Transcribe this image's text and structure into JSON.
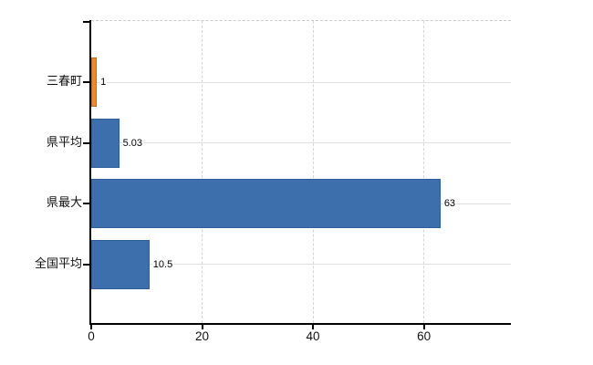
{
  "chart_data": {
    "type": "bar",
    "orientation": "horizontal",
    "title": "",
    "categories": [
      "三春町",
      "県平均",
      "県最大",
      "全国平均"
    ],
    "values": [
      1,
      5.03,
      63,
      10.5
    ],
    "value_labels": [
      "1",
      "5.03",
      "63",
      "10.5"
    ],
    "bar_styles": [
      {
        "fill": "#EC8A33",
        "border": "#C06A1E"
      },
      {
        "fill": "#3D6FAD",
        "border": "#2F5E99"
      },
      {
        "fill": "#3D6FAD",
        "border": "#2F5E99"
      },
      {
        "fill": "#3D6FAD",
        "border": "#2F5E99"
      }
    ],
    "x_ticks": [
      "0",
      "20",
      "40",
      "60"
    ],
    "x_tick_values": [
      0,
      20,
      40,
      60
    ],
    "xlim": [
      0,
      75.7
    ],
    "grid": true,
    "legend": "none",
    "background": "#ffffff"
  }
}
